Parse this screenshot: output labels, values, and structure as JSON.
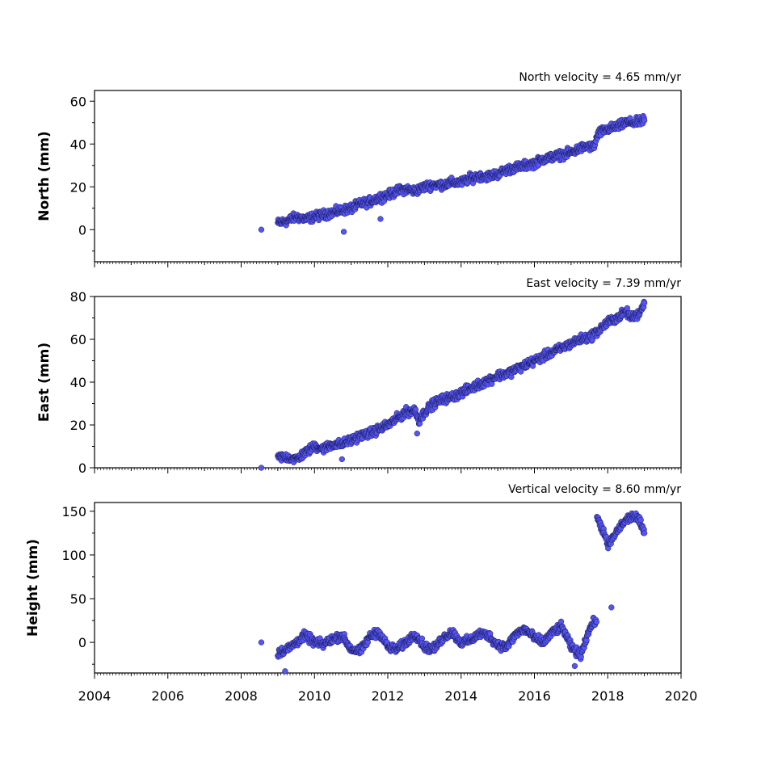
{
  "chart_data": {
    "type": "scatter",
    "marker_color": "#5555f5",
    "marker_edge_color": "#1a1a55",
    "x_axis": {
      "range": [
        2004,
        2020
      ],
      "tick_values": [
        2004,
        2006,
        2008,
        2010,
        2012,
        2014,
        2016,
        2018,
        2020
      ],
      "tick_labels": [
        "2004",
        "2006",
        "2008",
        "2010",
        "2012",
        "2014",
        "2016",
        "2018",
        "2020"
      ]
    },
    "panels": [
      {
        "id": "north",
        "annotation": "North velocity = 4.65 mm/yr",
        "ylabel": "North (mm)",
        "ylim": [
          -15,
          65
        ],
        "yticks": [
          0,
          20,
          40,
          60
        ],
        "yticklabels": [
          "0",
          "20",
          "40",
          "60"
        ],
        "series": {
          "x": [
            2008.55,
            2009.0,
            2009.25,
            2009.5,
            2009.75,
            2010.0,
            2010.25,
            2010.5,
            2010.75,
            2011.0,
            2011.25,
            2011.5,
            2011.75,
            2012.0,
            2012.25,
            2012.5,
            2012.75,
            2013.0,
            2013.25,
            2013.5,
            2013.75,
            2014.0,
            2014.25,
            2014.5,
            2014.75,
            2015.0,
            2015.25,
            2015.5,
            2015.75,
            2016.0,
            2016.25,
            2016.5,
            2016.75,
            2017.0,
            2017.25,
            2017.5,
            2017.6,
            2017.75,
            2018.0,
            2018.25,
            2018.5,
            2018.75,
            2019.0
          ],
          "y": [
            0,
            3,
            4,
            6,
            5,
            6,
            7,
            8,
            9,
            10,
            12,
            13,
            15,
            16,
            18,
            19,
            18,
            20,
            21,
            21,
            22,
            22,
            24,
            25,
            25,
            26,
            28,
            29,
            30,
            31,
            33,
            34,
            35,
            36,
            38,
            39,
            38,
            45,
            47,
            48,
            50,
            50,
            51
          ],
          "outliers_x": [
            2010.8,
            2011.8
          ],
          "outliers_y": [
            -1,
            5
          ]
        }
      },
      {
        "id": "east",
        "annotation": "East velocity = 7.39 mm/yr",
        "ylabel": "East (mm)",
        "ylim": [
          0,
          80
        ],
        "yticks": [
          0,
          20,
          40,
          60,
          80
        ],
        "yticklabels": [
          "0",
          "20",
          "40",
          "60",
          "80"
        ],
        "series": {
          "x": [
            2008.55,
            2009.0,
            2009.25,
            2009.5,
            2009.75,
            2010.0,
            2010.25,
            2010.5,
            2010.75,
            2011.0,
            2011.25,
            2011.5,
            2011.75,
            2012.0,
            2012.25,
            2012.5,
            2012.75,
            2012.85,
            2013.0,
            2013.25,
            2013.5,
            2013.75,
            2014.0,
            2014.25,
            2014.5,
            2014.75,
            2015.0,
            2015.25,
            2015.5,
            2015.75,
            2016.0,
            2016.25,
            2016.5,
            2016.75,
            2017.0,
            2017.25,
            2017.5,
            2017.75,
            2018.0,
            2018.25,
            2018.5,
            2018.65,
            2018.85,
            2019.0
          ],
          "y": [
            0,
            5,
            5,
            4,
            7,
            10,
            9,
            11,
            11,
            13,
            15,
            16,
            18,
            20,
            23,
            26,
            27,
            22,
            26,
            30,
            32,
            33,
            35,
            37,
            39,
            41,
            43,
            44,
            46,
            48,
            50,
            52,
            54,
            56,
            58,
            60,
            61,
            64,
            68,
            70,
            73,
            70,
            72,
            77
          ],
          "outliers_x": [
            2010.75,
            2012.8
          ],
          "outliers_y": [
            4,
            16
          ]
        }
      },
      {
        "id": "height",
        "annotation": "Vertical velocity = 8.60 mm/yr",
        "ylabel": "Height (mm)",
        "ylim": [
          -35,
          160
        ],
        "yticks": [
          0,
          50,
          100,
          150
        ],
        "yticklabels": [
          "0",
          "50",
          "100",
          "150"
        ],
        "series": {
          "x": [
            2008.55,
            2009.0,
            2009.25,
            2009.5,
            2009.75,
            2010.0,
            2010.25,
            2010.5,
            2010.75,
            2011.0,
            2011.25,
            2011.5,
            2011.75,
            2012.0,
            2012.25,
            2012.5,
            2012.75,
            2013.0,
            2013.25,
            2013.5,
            2013.75,
            2014.0,
            2014.25,
            2014.5,
            2014.75,
            2015.0,
            2015.25,
            2015.5,
            2015.75,
            2016.0,
            2016.25,
            2016.5,
            2016.75,
            2017.0,
            2017.25,
            2017.5,
            2017.65,
            2017.75,
            2017.9,
            2018.0,
            2018.15,
            2018.3,
            2018.5,
            2018.7,
            2018.85,
            2019.0
          ],
          "y": [
            0,
            -12,
            -8,
            0,
            8,
            0,
            -2,
            4,
            8,
            -8,
            -10,
            6,
            12,
            -5,
            -8,
            0,
            10,
            -5,
            -8,
            5,
            12,
            0,
            2,
            10,
            8,
            -3,
            -5,
            10,
            15,
            5,
            0,
            12,
            18,
            -5,
            -15,
            15,
            25,
            140,
            125,
            110,
            120,
            130,
            140,
            145,
            140,
            125
          ],
          "outliers_x": [
            2009.2,
            2017.1,
            2018.1
          ],
          "outliers_y": [
            -33,
            -27,
            40
          ]
        }
      }
    ]
  }
}
